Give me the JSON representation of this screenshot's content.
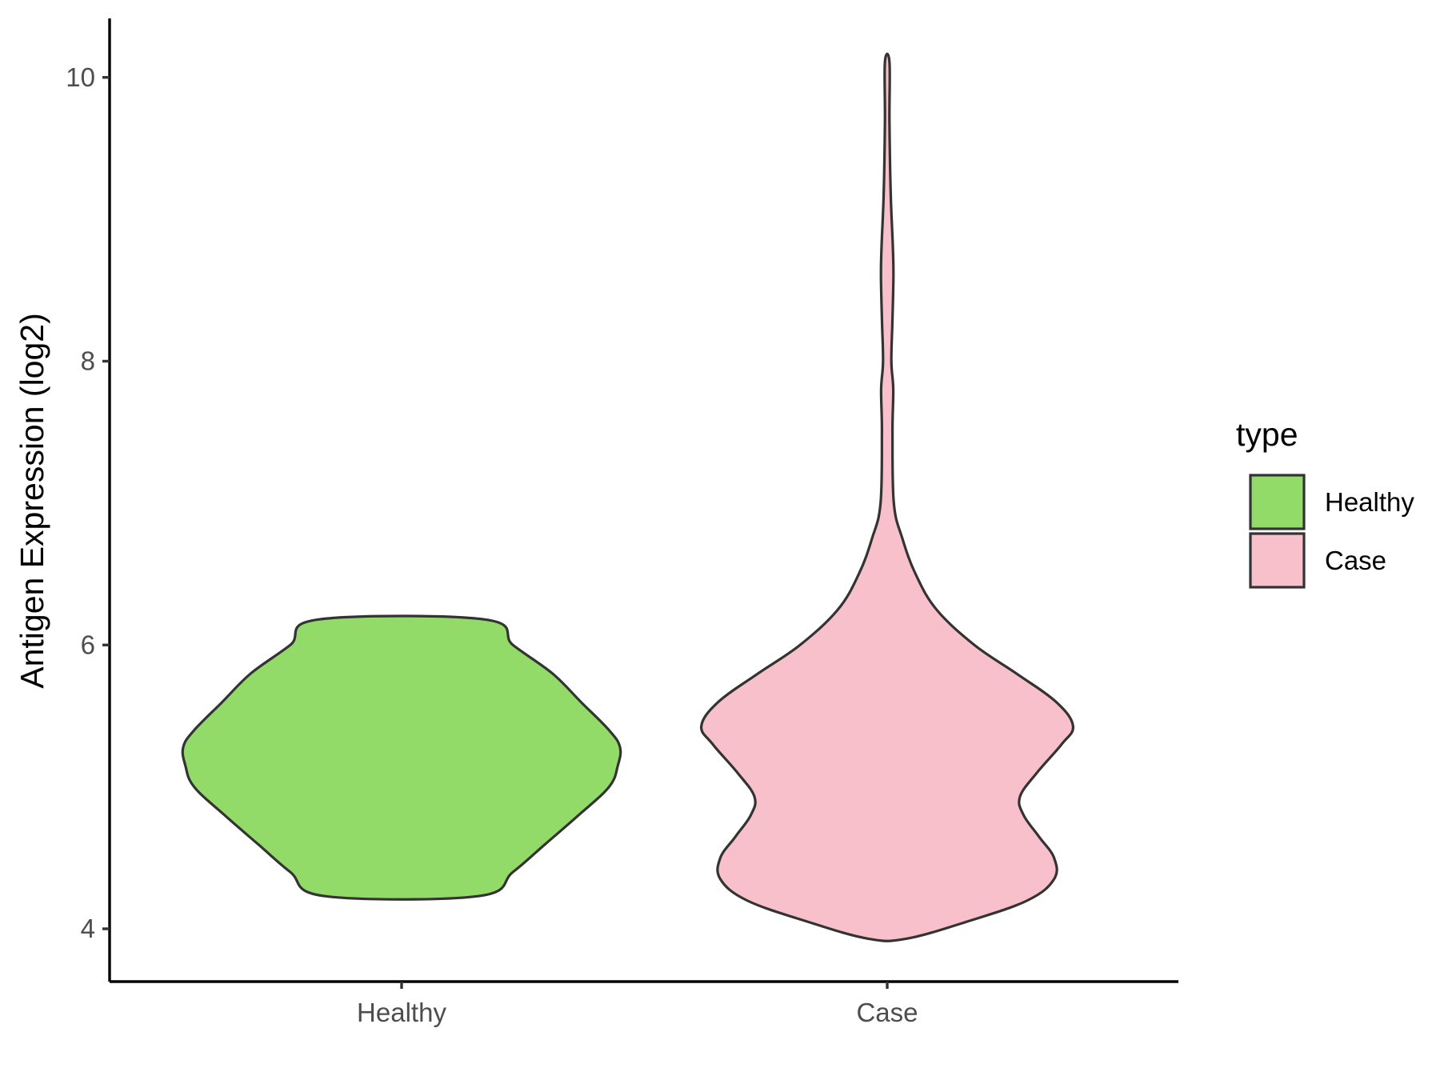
{
  "chart_data": {
    "type": "violin",
    "categories": [
      "Healthy",
      "Case"
    ],
    "xlabel": "",
    "ylabel": "Antigen Expression (log2)",
    "ylim": [
      3.63,
      10.42
    ],
    "yticks": [
      4,
      6,
      8,
      10
    ],
    "ytick_labels": [
      "4",
      "6",
      "8",
      "10"
    ],
    "grid": false,
    "legend": {
      "title": "type",
      "position": "right",
      "entries": [
        {
          "label": "Healthy",
          "color": "#93DB69"
        },
        {
          "label": "Case",
          "color": "#F8C0CB"
        }
      ]
    },
    "series": [
      {
        "category": "Healthy",
        "color": "#93DB69",
        "min": 4.23,
        "max": 6.18,
        "profile": [
          [
            4.23,
            0.35
          ],
          [
            4.4,
            0.51
          ],
          [
            4.6,
            0.66
          ],
          [
            4.8,
            0.81
          ],
          [
            5.0,
            0.95
          ],
          [
            5.15,
            0.99
          ],
          [
            5.28,
            1.0
          ],
          [
            5.4,
            0.95
          ],
          [
            5.6,
            0.82
          ],
          [
            5.8,
            0.69
          ],
          [
            6.0,
            0.51
          ],
          [
            6.18,
            0.38
          ]
        ]
      },
      {
        "category": "Case",
        "color": "#F8C0CB",
        "min": 3.93,
        "max": 10.11,
        "profile": [
          [
            3.93,
            0.1
          ],
          [
            4.05,
            0.42
          ],
          [
            4.2,
            0.74
          ],
          [
            4.35,
            0.88
          ],
          [
            4.5,
            0.88
          ],
          [
            4.65,
            0.8
          ],
          [
            4.8,
            0.72
          ],
          [
            4.93,
            0.7
          ],
          [
            5.1,
            0.79
          ],
          [
            5.3,
            0.92
          ],
          [
            5.43,
            0.98
          ],
          [
            5.6,
            0.89
          ],
          [
            5.8,
            0.68
          ],
          [
            6.0,
            0.46
          ],
          [
            6.25,
            0.26
          ],
          [
            6.5,
            0.15
          ],
          [
            6.75,
            0.08
          ],
          [
            7.0,
            0.035
          ],
          [
            7.5,
            0.028
          ],
          [
            7.8,
            0.032
          ],
          [
            8.0,
            0.022
          ],
          [
            8.3,
            0.028
          ],
          [
            8.6,
            0.033
          ],
          [
            8.8,
            0.03
          ],
          [
            9.2,
            0.018
          ],
          [
            9.7,
            0.012
          ],
          [
            10.11,
            0.012
          ]
        ]
      }
    ]
  }
}
